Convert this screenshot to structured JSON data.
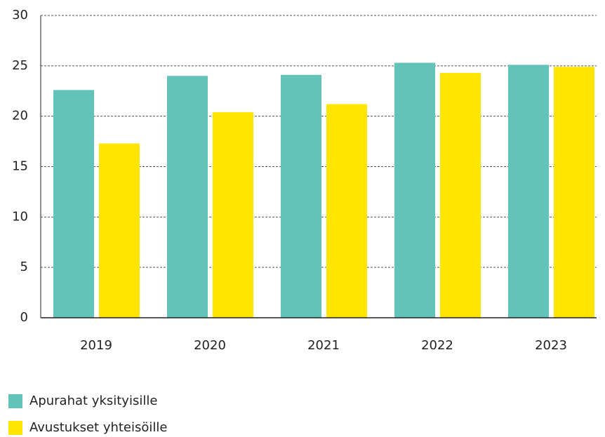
{
  "chart_data": {
    "type": "bar",
    "categories": [
      "2019",
      "2020",
      "2021",
      "2022",
      "2023"
    ],
    "series": [
      {
        "name": "Apurahat yksityisille",
        "color": "#62c3b8",
        "values": [
          22.6,
          24.0,
          24.1,
          25.3,
          25.1
        ]
      },
      {
        "name": "Avustukset yhteisöille",
        "color": "#ffe500",
        "values": [
          17.3,
          20.4,
          21.2,
          24.3,
          24.9
        ]
      }
    ],
    "ylim": [
      0,
      30
    ],
    "yticks": [
      0,
      5,
      10,
      15,
      20,
      25,
      30
    ],
    "grid": true,
    "legend": "bottom-left"
  }
}
